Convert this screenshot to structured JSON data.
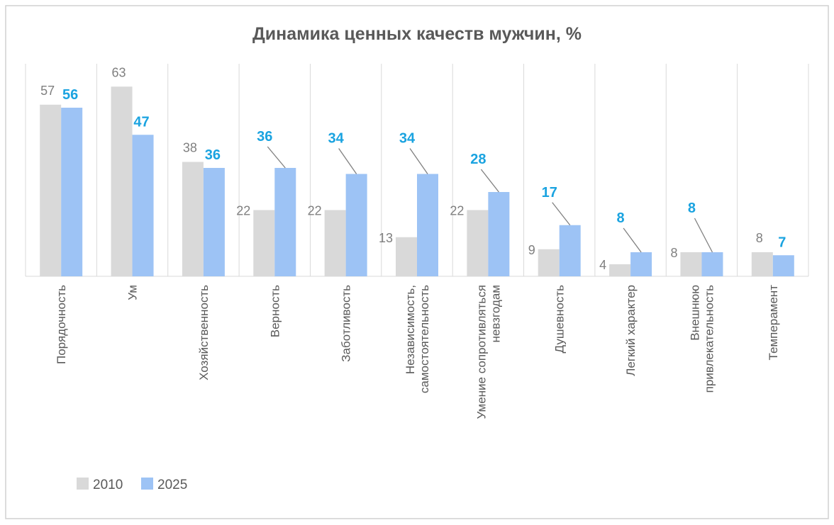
{
  "chart_data": {
    "type": "bar",
    "title": "Динамика ценных качеств мужчин, %",
    "xlabel": "",
    "ylabel": "",
    "ylim": [
      0,
      70
    ],
    "grid": "vertical category separators",
    "legend_position": "bottom-left",
    "categories": [
      [
        "Порядочность"
      ],
      [
        "Ум"
      ],
      [
        "Хозяйственность"
      ],
      [
        "Верность"
      ],
      [
        "Заботливость"
      ],
      [
        "Независимость,",
        "самостоятельность"
      ],
      [
        "Умение сопротивляться",
        "невзгодам"
      ],
      [
        "Душевность"
      ],
      [
        "Легкий характер"
      ],
      [
        "Внешнюю",
        "привлекательность"
      ],
      [
        "Темперамент"
      ]
    ],
    "series": [
      {
        "name": "2010",
        "color": "#d9d9d9",
        "label_color": "#7f7f7f",
        "values": [
          57,
          63,
          38,
          22,
          22,
          13,
          22,
          9,
          4,
          8,
          8
        ]
      },
      {
        "name": "2025",
        "color": "#9dc3f5",
        "label_color": "#1aa3e0",
        "values": [
          56,
          47,
          36,
          36,
          34,
          34,
          28,
          17,
          8,
          8,
          7
        ]
      }
    ]
  }
}
